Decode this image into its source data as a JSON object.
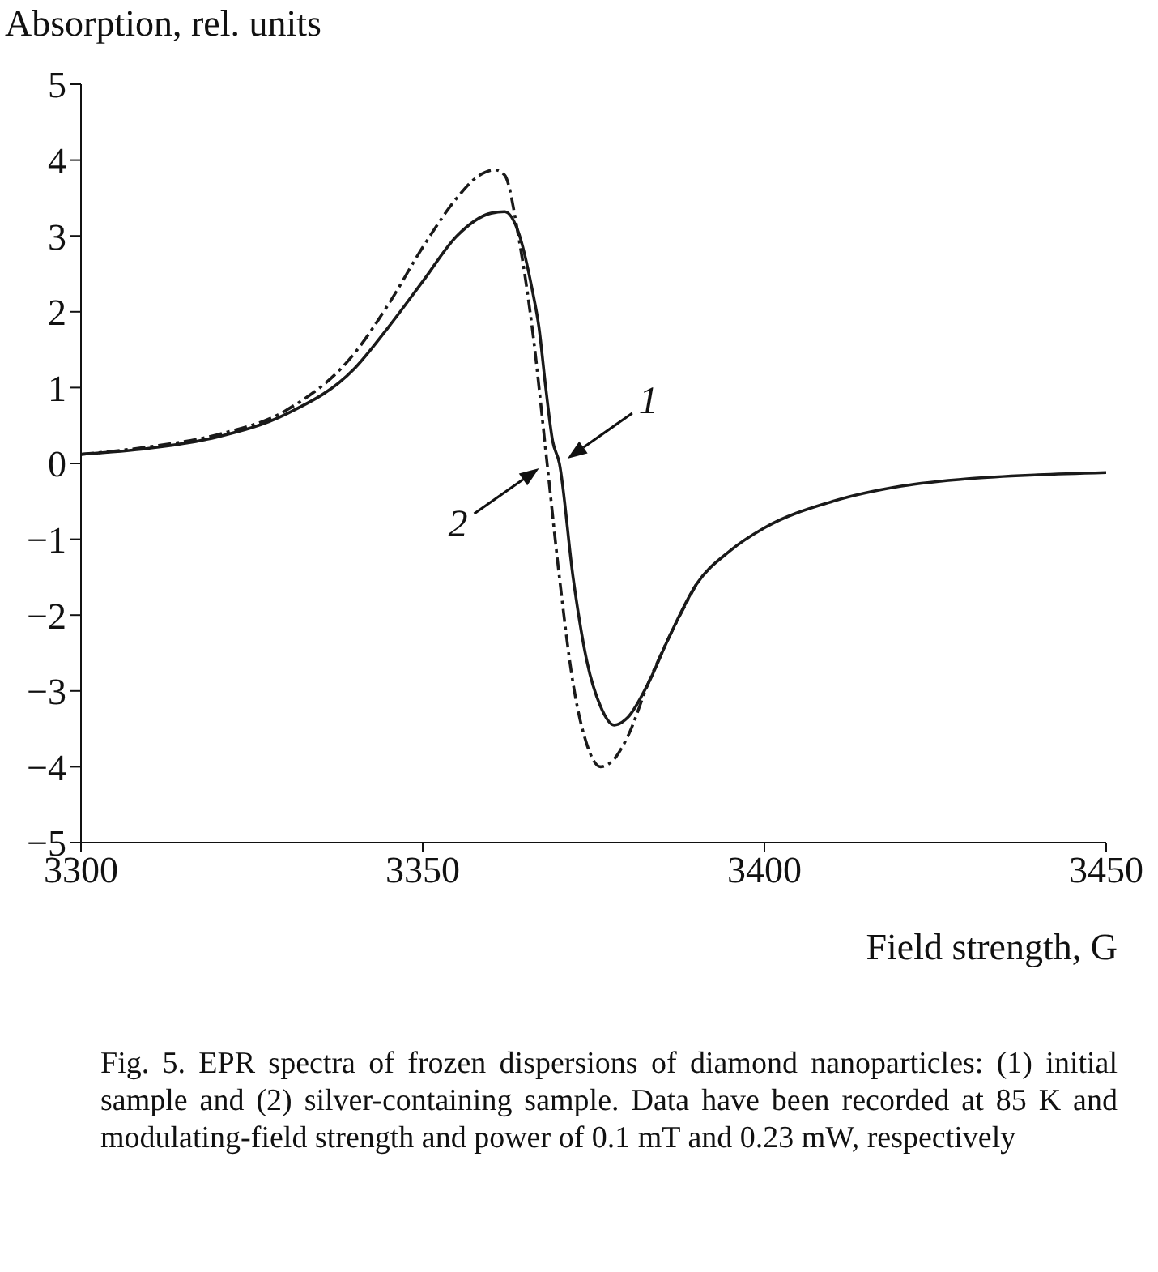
{
  "chart_data": {
    "type": "line",
    "xlabel": "Field strength, G",
    "ylabel": "Absorption, rel. units",
    "xlim": [
      3300,
      3450
    ],
    "xticks": [
      3300,
      3350,
      3400,
      3450
    ],
    "ylim": [
      -5,
      5
    ],
    "yticks": [
      -5,
      -4,
      -3,
      -2,
      -1,
      0,
      1,
      2,
      3,
      4,
      5
    ],
    "grid": false,
    "legend": false,
    "marker": "none",
    "series": [
      {
        "color": "#1a1a1a",
        "line_style": "solid",
        "x": [
          3300,
          3310,
          3320,
          3330,
          3340,
          3345,
          3350,
          3355,
          3360,
          3362,
          3364,
          3366,
          3367,
          3368,
          3369,
          3370,
          3372,
          3374,
          3376,
          3378,
          3380,
          3383,
          3386,
          3390,
          3395,
          3400,
          3410,
          3420,
          3430,
          3440,
          3450
        ],
        "values": [
          0.12,
          0.2,
          0.35,
          0.65,
          1.25,
          1.8,
          2.4,
          3.0,
          3.3,
          3.32,
          3.05,
          2.3,
          1.8,
          1.0,
          0.3,
          0,
          -1.5,
          -2.6,
          -3.2,
          -3.45,
          -3.35,
          -2.9,
          -2.3,
          -1.6,
          -1.15,
          -0.85,
          -0.5,
          -0.3,
          -0.2,
          -0.15,
          -0.12
        ]
      },
      {
        "color": "#1a1a1a",
        "line_style": "dashed",
        "x": [
          3300,
          3310,
          3320,
          3330,
          3340,
          3345,
          3350,
          3355,
          3358,
          3360.6,
          3362,
          3364,
          3366,
          3368.2,
          3370,
          3372,
          3374,
          3376,
          3378,
          3380,
          3383,
          3386,
          3390
        ],
        "values": [
          0.12,
          0.22,
          0.38,
          0.7,
          1.45,
          2.1,
          2.85,
          3.5,
          3.78,
          3.87,
          3.8,
          3.0,
          1.8,
          0,
          -1.5,
          -2.9,
          -3.7,
          -4.0,
          -3.9,
          -3.6,
          -2.9,
          -2.3,
          -1.6
        ]
      }
    ],
    "annotations": [
      {
        "text": "1",
        "x": 3370,
        "y": 0
      },
      {
        "text": "2",
        "x": 3368.2,
        "y": 0
      },
      "Fig. 5. EPR spectra of frozen dispersions of diamond nanoparticles: (1) initial sample and (2) silver-containing sample. Data have been recorded at 85 K and modulating-field strength and power of 0.1 mT and 0.23 mW, respectively"
    ]
  }
}
